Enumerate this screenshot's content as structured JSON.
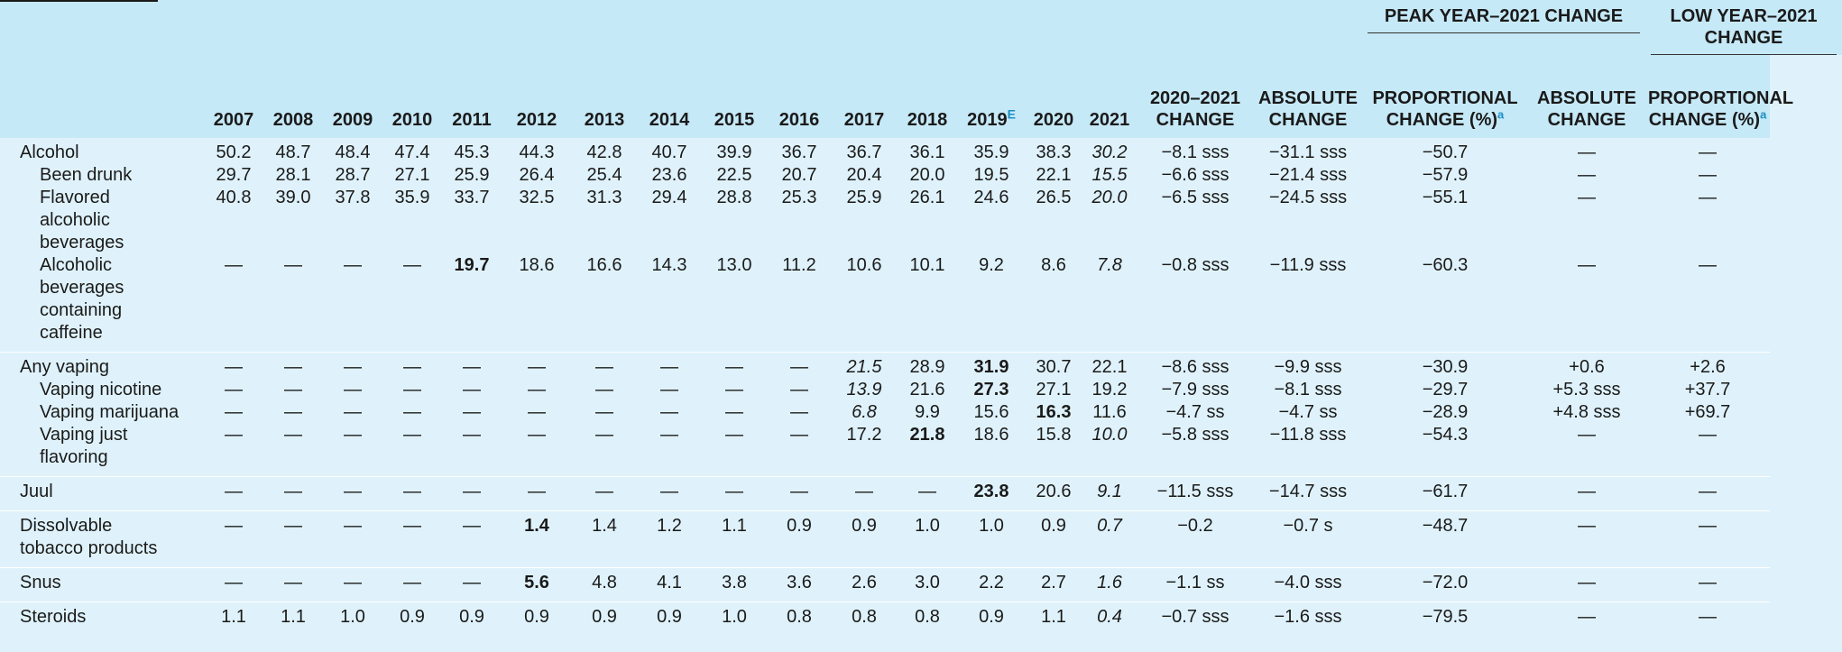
{
  "header": {
    "group_peak": "PEAK YEAR–2021 CHANGE",
    "group_low": "LOW YEAR–2021 CHANGE",
    "years": [
      "2007",
      "2008",
      "2009",
      "2010",
      "2011",
      "2012",
      "2013",
      "2014",
      "2015",
      "2016",
      "2017",
      "2018",
      "2019",
      "2020",
      "2021"
    ],
    "year_2019_sup": "E",
    "change_2020_2021_line1": "2020–2021",
    "change_2020_2021_line2": "CHANGE",
    "peak_abs_line1": "ABSOLUTE",
    "peak_abs_line2": "CHANGE",
    "peak_prop_line1": "PROPORTIONAL",
    "peak_prop_line2": "CHANGE (%)",
    "low_abs_line1": "ABSOLUTE",
    "low_abs_line2": "CHANGE",
    "low_prop_line1": "PROPORTIONAL",
    "low_prop_line2": "CHANGE (%)",
    "footnote_mark": "a"
  },
  "rows": [
    {
      "label_lines": [
        "Alcohol"
      ],
      "indent": false,
      "group_start": true,
      "group_end": false,
      "values": [
        "50.2",
        "48.7",
        "48.4",
        "47.4",
        "45.3",
        "44.3",
        "42.8",
        "40.7",
        "39.9",
        "36.7",
        "36.7",
        "36.1",
        "35.9",
        "38.3",
        "30.2"
      ],
      "bold": [],
      "italic": [
        14
      ],
      "change": "−8.1 sss",
      "peak_abs": "−31.1 sss",
      "peak_prop": "−50.7",
      "low_abs": "—",
      "low_prop": "—"
    },
    {
      "label_lines": [
        "Been drunk"
      ],
      "indent": true,
      "group_start": false,
      "group_end": false,
      "values": [
        "29.7",
        "28.1",
        "28.7",
        "27.1",
        "25.9",
        "26.4",
        "25.4",
        "23.6",
        "22.5",
        "20.7",
        "20.4",
        "20.0",
        "19.5",
        "22.1",
        "15.5"
      ],
      "bold": [],
      "italic": [
        14
      ],
      "change": "−6.6 sss",
      "peak_abs": "−21.4 sss",
      "peak_prop": "−57.9",
      "low_abs": "—",
      "low_prop": "—"
    },
    {
      "label_lines": [
        "Flavored",
        "alcoholic",
        "beverages"
      ],
      "indent": true,
      "group_start": false,
      "group_end": false,
      "values": [
        "40.8",
        "39.0",
        "37.8",
        "35.9",
        "33.7",
        "32.5",
        "31.3",
        "29.4",
        "28.8",
        "25.3",
        "25.9",
        "26.1",
        "24.6",
        "26.5",
        "20.0"
      ],
      "bold": [],
      "italic": [
        14
      ],
      "change": "−6.5 sss",
      "peak_abs": "−24.5 sss",
      "peak_prop": "−55.1",
      "low_abs": "—",
      "low_prop": "—"
    },
    {
      "label_lines": [
        "Alcoholic",
        "beverages",
        "containing",
        "caffeine"
      ],
      "indent": true,
      "group_start": false,
      "group_end": true,
      "values": [
        "—",
        "—",
        "—",
        "—",
        "19.7",
        "18.6",
        "16.6",
        "14.3",
        "13.0",
        "11.2",
        "10.6",
        "10.1",
        "9.2",
        "8.6",
        "7.8"
      ],
      "bold": [
        4
      ],
      "italic": [
        14
      ],
      "change": "−0.8 sss",
      "peak_abs": "−11.9 sss",
      "peak_prop": "−60.3",
      "low_abs": "—",
      "low_prop": "—"
    },
    {
      "label_lines": [
        "Any vaping"
      ],
      "indent": false,
      "group_start": true,
      "group_end": false,
      "values": [
        "—",
        "—",
        "—",
        "—",
        "—",
        "—",
        "—",
        "—",
        "—",
        "—",
        "21.5",
        "28.9",
        "31.9",
        "30.7",
        "22.1"
      ],
      "bold": [
        12
      ],
      "italic": [
        10
      ],
      "change": "−8.6 sss",
      "peak_abs": "−9.9 sss",
      "peak_prop": "−30.9",
      "low_abs": "+0.6",
      "low_prop": "+2.6"
    },
    {
      "label_lines": [
        "Vaping nicotine"
      ],
      "indent": true,
      "group_start": false,
      "group_end": false,
      "values": [
        "—",
        "—",
        "—",
        "—",
        "—",
        "—",
        "—",
        "—",
        "—",
        "—",
        "13.9",
        "21.6",
        "27.3",
        "27.1",
        "19.2"
      ],
      "bold": [
        12
      ],
      "italic": [
        10
      ],
      "change": "−7.9 sss",
      "peak_abs": "−8.1 sss",
      "peak_prop": "−29.7",
      "low_abs": "+5.3 sss",
      "low_prop": "+37.7"
    },
    {
      "label_lines": [
        "Vaping marijuana"
      ],
      "indent": true,
      "group_start": false,
      "group_end": false,
      "values": [
        "—",
        "—",
        "—",
        "—",
        "—",
        "—",
        "—",
        "—",
        "—",
        "—",
        "6.8",
        "9.9",
        "15.6",
        "16.3",
        "11.6"
      ],
      "bold": [
        13
      ],
      "italic": [
        10
      ],
      "change": "−4.7 ss",
      "peak_abs": "−4.7 ss",
      "peak_prop": "−28.9",
      "low_abs": "+4.8 sss",
      "low_prop": "+69.7"
    },
    {
      "label_lines": [
        "Vaping just",
        "flavoring"
      ],
      "indent": true,
      "group_start": false,
      "group_end": true,
      "values": [
        "—",
        "—",
        "—",
        "—",
        "—",
        "—",
        "—",
        "—",
        "—",
        "—",
        "17.2",
        "21.8",
        "18.6",
        "15.8",
        "10.0"
      ],
      "bold": [
        11
      ],
      "italic": [
        14
      ],
      "change": "−5.8 sss",
      "peak_abs": "−11.8 sss",
      "peak_prop": "−54.3",
      "low_abs": "—",
      "low_prop": "—"
    },
    {
      "label_lines": [
        "Juul"
      ],
      "indent": false,
      "group_start": true,
      "group_end": true,
      "values": [
        "—",
        "—",
        "—",
        "—",
        "—",
        "—",
        "—",
        "—",
        "—",
        "—",
        "—",
        "—",
        "23.8",
        "20.6",
        "9.1"
      ],
      "bold": [
        12
      ],
      "italic": [
        14
      ],
      "change": "−11.5 sss",
      "peak_abs": "−14.7 sss",
      "peak_prop": "−61.7",
      "low_abs": "—",
      "low_prop": "—"
    },
    {
      "label_lines": [
        "Dissolvable",
        "tobacco products"
      ],
      "indent": false,
      "group_start": true,
      "group_end": true,
      "values": [
        "—",
        "—",
        "—",
        "—",
        "—",
        "1.4",
        "1.4",
        "1.2",
        "1.1",
        "0.9",
        "0.9",
        "1.0",
        "1.0",
        "0.9",
        "0.7"
      ],
      "bold": [
        5
      ],
      "italic": [
        14
      ],
      "change": "−0.2",
      "peak_abs": "−0.7 s",
      "peak_prop": "−48.7",
      "low_abs": "—",
      "low_prop": "—"
    },
    {
      "label_lines": [
        "Snus"
      ],
      "indent": false,
      "group_start": true,
      "group_end": true,
      "values": [
        "—",
        "—",
        "—",
        "—",
        "—",
        "5.6",
        "4.8",
        "4.1",
        "3.8",
        "3.6",
        "2.6",
        "3.0",
        "2.2",
        "2.7",
        "1.6"
      ],
      "bold": [
        5
      ],
      "italic": [
        14
      ],
      "change": "−1.1 ss",
      "peak_abs": "−4.0 sss",
      "peak_prop": "−72.0",
      "low_abs": "—",
      "low_prop": "—"
    },
    {
      "label_lines": [
        "Steroids"
      ],
      "indent": false,
      "group_start": true,
      "group_end": true,
      "values": [
        "1.1",
        "1.1",
        "1.0",
        "0.9",
        "0.9",
        "0.9",
        "0.9",
        "0.9",
        "1.0",
        "0.8",
        "0.8",
        "0.8",
        "0.9",
        "1.1",
        "0.4"
      ],
      "bold": [],
      "italic": [
        14
      ],
      "change": "−0.7 sss",
      "peak_abs": "−1.6 sss",
      "peak_prop": "−79.5",
      "low_abs": "—",
      "low_prop": "—"
    }
  ]
}
